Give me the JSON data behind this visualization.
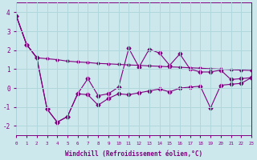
{
  "bg_color": "#cce8ec",
  "line_color": "#800080",
  "grid_color": "#b0d8dc",
  "xlabel": "Windchill (Refroidissement éolien,°C)",
  "ylim": [
    -2.5,
    4.5
  ],
  "xlim": [
    0,
    23
  ],
  "yticks": [
    -2,
    -1,
    0,
    1,
    2,
    3,
    4
  ],
  "xticks": [
    0,
    1,
    2,
    3,
    4,
    5,
    6,
    7,
    8,
    9,
    10,
    11,
    12,
    13,
    14,
    15,
    16,
    17,
    18,
    19,
    20,
    21,
    22,
    23
  ],
  "line1_x": [
    0,
    1,
    2,
    3,
    4,
    5,
    6,
    7,
    8,
    9,
    10,
    11,
    12,
    13,
    14,
    15,
    16,
    17,
    18,
    19,
    20,
    21,
    22,
    23
  ],
  "line1_y": [
    3.8,
    2.3,
    1.6,
    1.55,
    1.5,
    1.42,
    1.38,
    1.35,
    1.3,
    1.28,
    1.25,
    1.22,
    1.2,
    1.17,
    1.15,
    1.12,
    1.1,
    1.07,
    1.05,
    1.02,
    1.0,
    0.97,
    0.95,
    0.93
  ],
  "line2_x": [
    0,
    1,
    2,
    3,
    4,
    5,
    6,
    7,
    8,
    9,
    10,
    11,
    12,
    13,
    14,
    15,
    16,
    17,
    18,
    19,
    20,
    21,
    22,
    23
  ],
  "line2_y": [
    3.8,
    2.3,
    1.6,
    -1.1,
    -1.8,
    -1.5,
    -0.3,
    0.5,
    -0.4,
    -0.3,
    0.05,
    2.1,
    1.1,
    2.05,
    1.85,
    1.2,
    1.8,
    1.0,
    0.85,
    0.85,
    0.95,
    0.45,
    0.5,
    0.55
  ],
  "line3_x": [
    0,
    1,
    2,
    3,
    4,
    5,
    6,
    7,
    8,
    9,
    10,
    11,
    12,
    13,
    14,
    15,
    16,
    17,
    18,
    19,
    20,
    21,
    22,
    23
  ],
  "line3_y": [
    3.8,
    2.3,
    1.6,
    -1.1,
    -1.8,
    -1.5,
    -0.3,
    -0.35,
    -0.9,
    -0.55,
    -0.3,
    -0.35,
    -0.25,
    -0.15,
    -0.05,
    -0.2,
    0.0,
    0.05,
    0.1,
    -1.05,
    0.15,
    0.2,
    0.25,
    0.55
  ]
}
